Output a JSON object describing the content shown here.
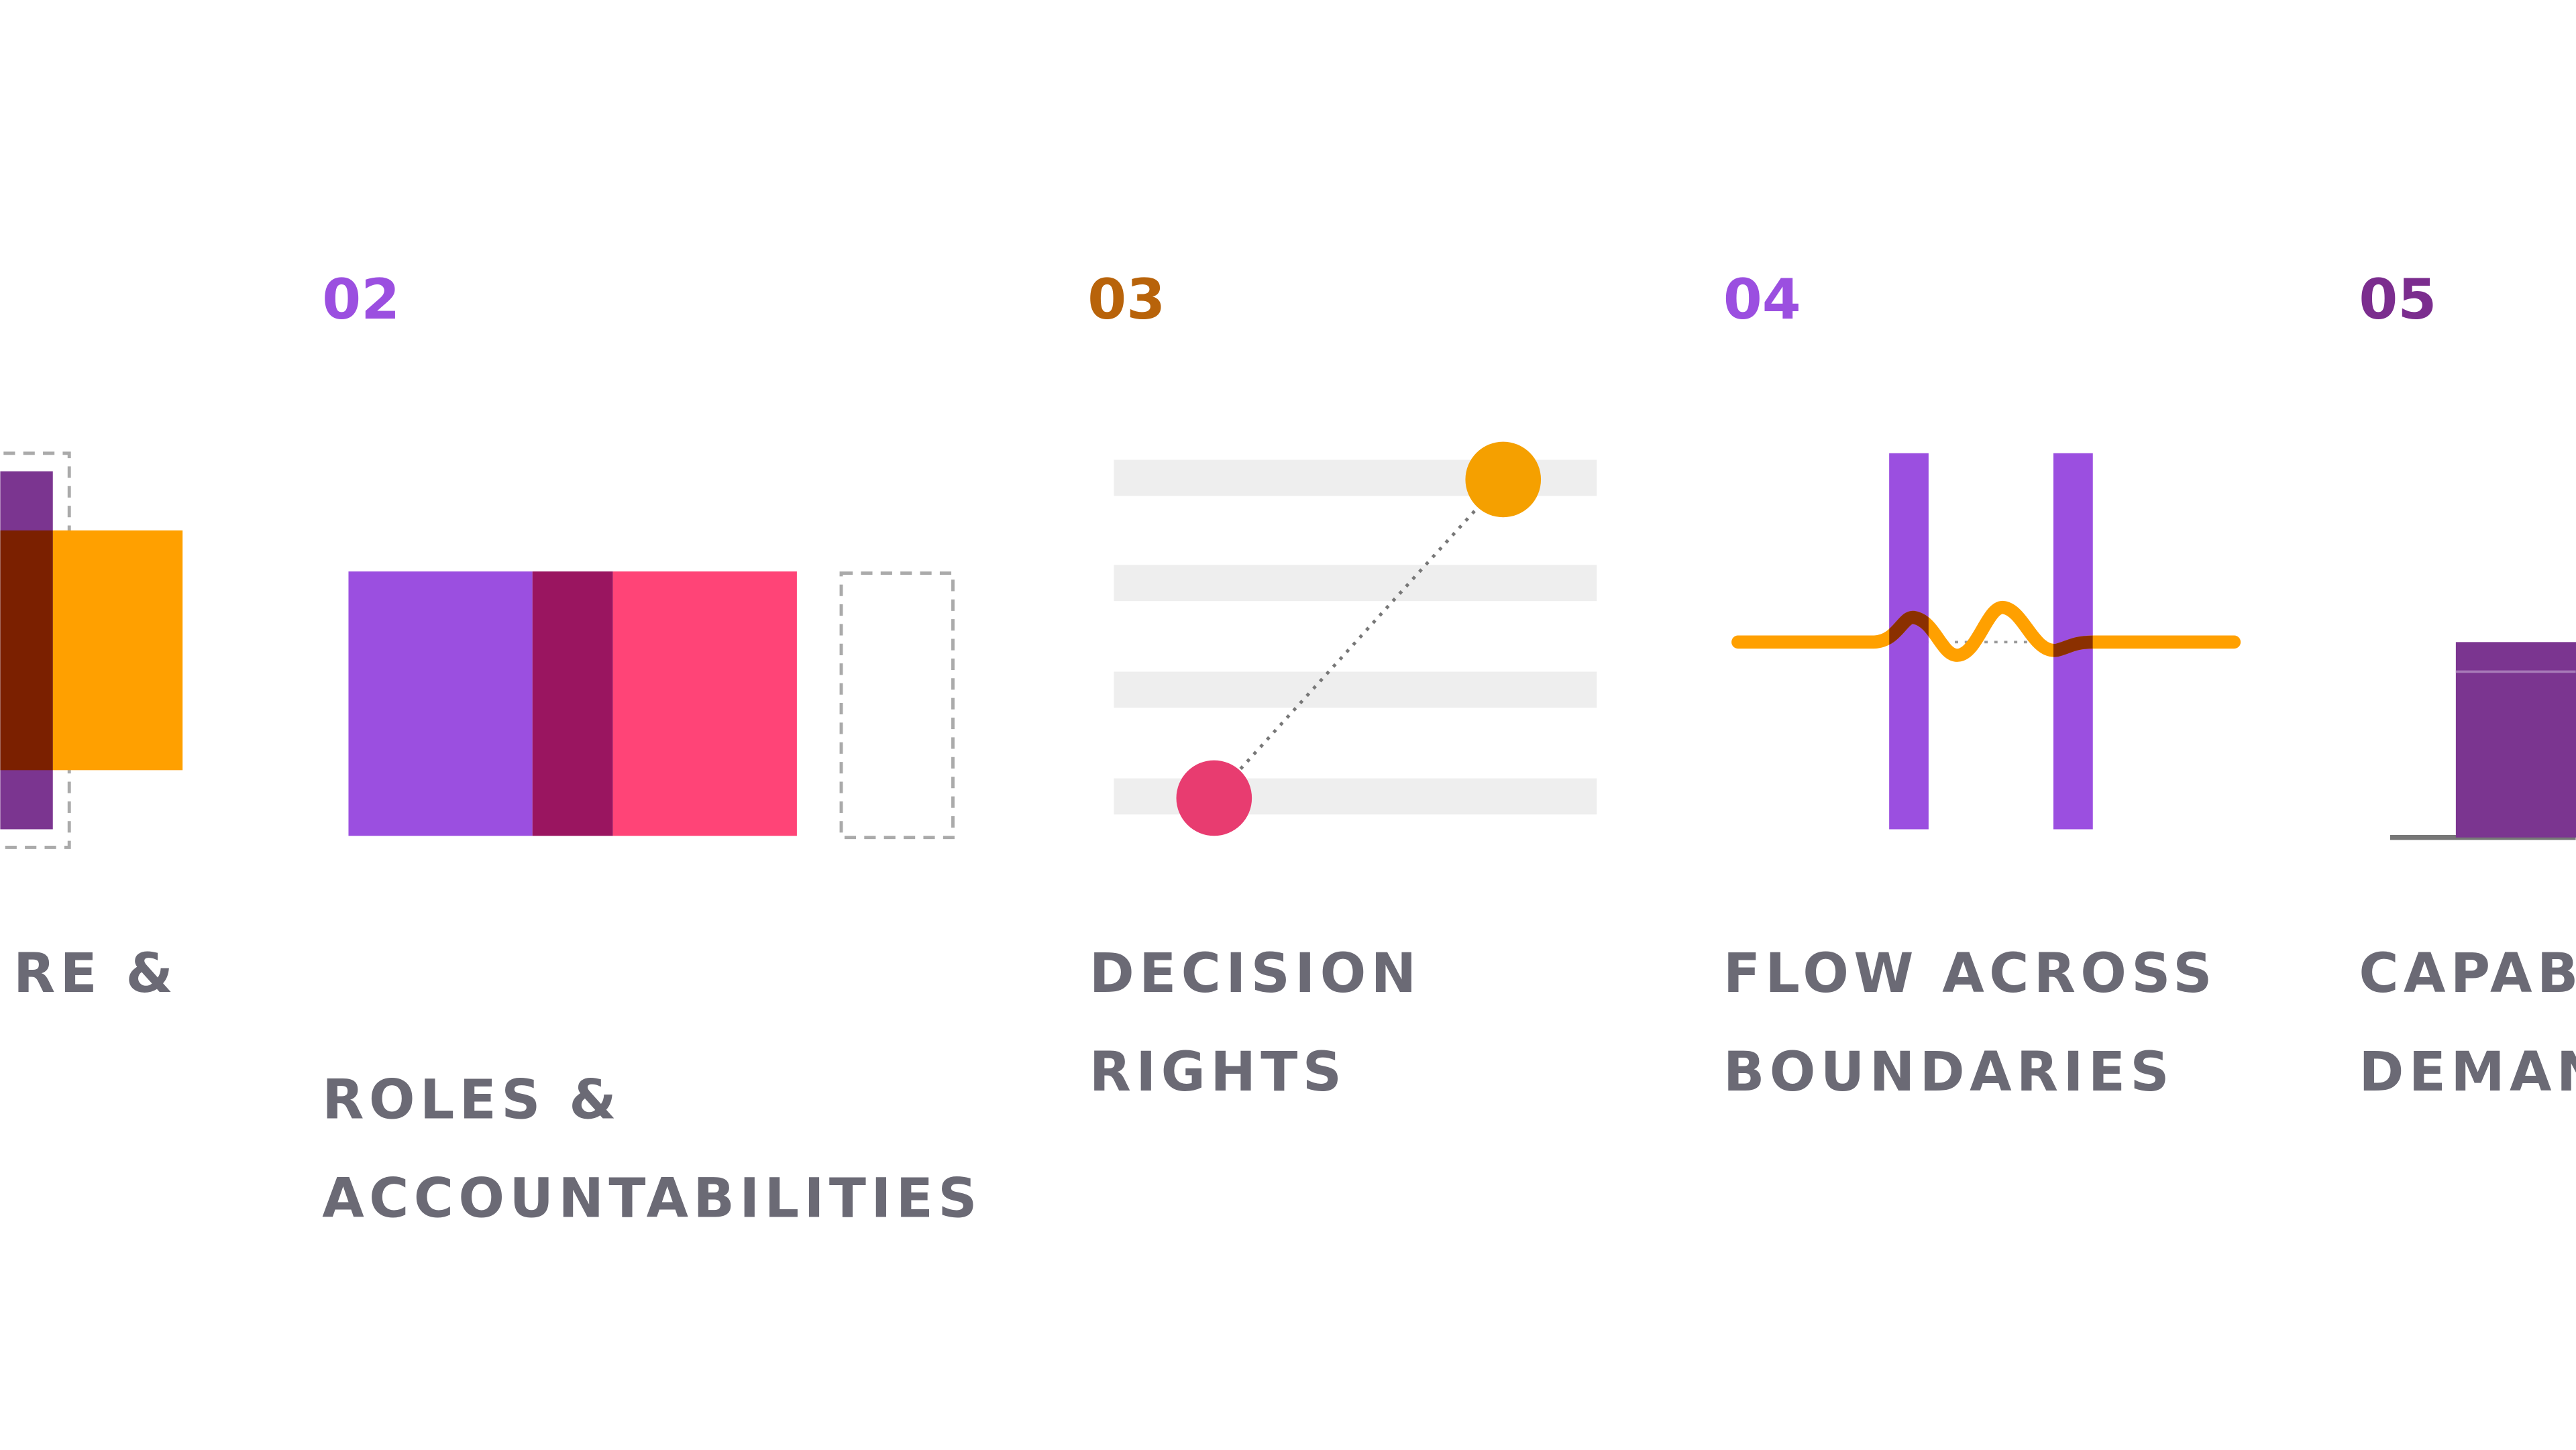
{
  "items": [
    {
      "title_lines": [
        "RE &"
      ]
    },
    {
      "number": "02",
      "title_lines": [
        "ROLES &",
        "ACCOUNTABILITIES"
      ]
    },
    {
      "number": "03",
      "title_lines": [
        "DECISION",
        "RIGHTS"
      ]
    },
    {
      "number": "04",
      "title_lines": [
        "FLOW ACROSS",
        "BOUNDARIES"
      ]
    },
    {
      "number": "05",
      "title_lines": [
        "CAPAB",
        "DEMAN"
      ]
    }
  ]
}
